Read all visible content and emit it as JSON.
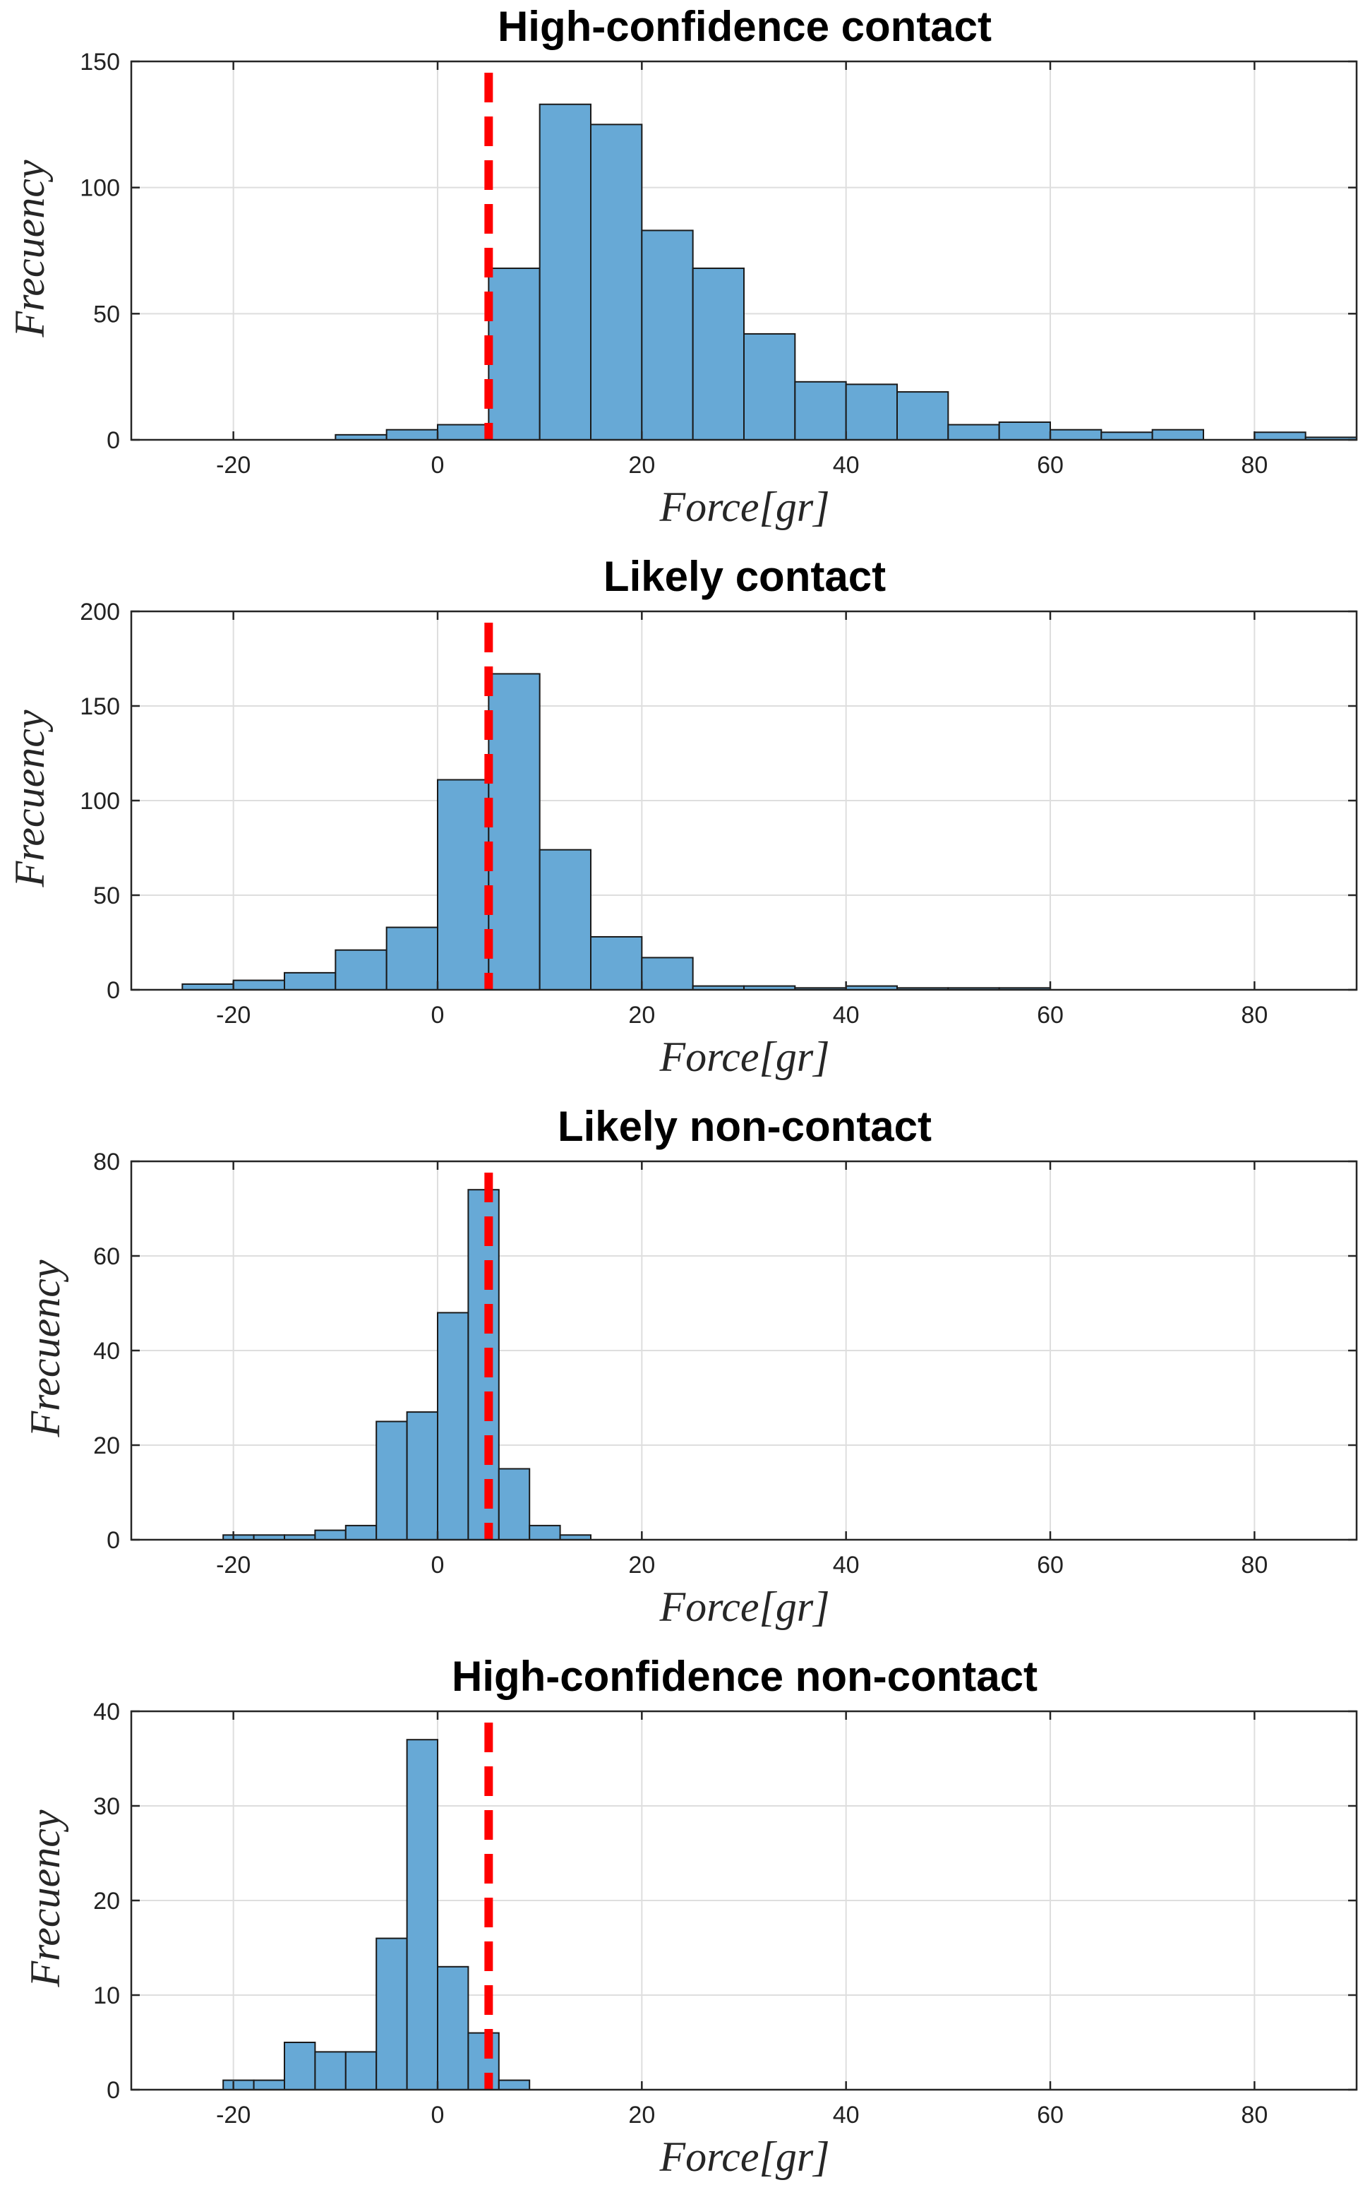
{
  "figure": {
    "bar_color": "#67a9d6",
    "bar_edge_color": "#1a1a1a",
    "threshold_color": "#ff0000"
  },
  "chart_data": [
    {
      "type": "bar",
      "title": "High-confidence contact",
      "xlabel": "Force[gr]",
      "ylabel": "Frecuency",
      "xlim": [
        -30,
        90
      ],
      "ylim": [
        0,
        150
      ],
      "xticks": [
        "-20",
        "0",
        "20",
        "40",
        "60",
        "80"
      ],
      "yticks": [
        "0",
        "50",
        "100",
        "150"
      ],
      "grid": true,
      "threshold": 5,
      "bins": [
        {
          "x0": -10,
          "x1": -5,
          "count": 2
        },
        {
          "x0": -5,
          "x1": 0,
          "count": 4
        },
        {
          "x0": 0,
          "x1": 5,
          "count": 6
        },
        {
          "x0": 5,
          "x1": 10,
          "count": 68
        },
        {
          "x0": 10,
          "x1": 15,
          "count": 133
        },
        {
          "x0": 15,
          "x1": 20,
          "count": 125
        },
        {
          "x0": 20,
          "x1": 25,
          "count": 83
        },
        {
          "x0": 25,
          "x1": 30,
          "count": 68
        },
        {
          "x0": 30,
          "x1": 35,
          "count": 42
        },
        {
          "x0": 35,
          "x1": 40,
          "count": 23
        },
        {
          "x0": 40,
          "x1": 45,
          "count": 22
        },
        {
          "x0": 45,
          "x1": 50,
          "count": 19
        },
        {
          "x0": 50,
          "x1": 55,
          "count": 6
        },
        {
          "x0": 55,
          "x1": 60,
          "count": 7
        },
        {
          "x0": 60,
          "x1": 65,
          "count": 4
        },
        {
          "x0": 65,
          "x1": 70,
          "count": 3
        },
        {
          "x0": 70,
          "x1": 75,
          "count": 4
        },
        {
          "x0": 80,
          "x1": 85,
          "count": 3
        },
        {
          "x0": 85,
          "x1": 90,
          "count": 1
        }
      ]
    },
    {
      "type": "bar",
      "title": "Likely contact",
      "xlabel": "Force[gr]",
      "ylabel": "Frecuency",
      "xlim": [
        -30,
        90
      ],
      "ylim": [
        0,
        200
      ],
      "xticks": [
        "-20",
        "0",
        "20",
        "40",
        "60",
        "80"
      ],
      "yticks": [
        "0",
        "50",
        "100",
        "150",
        "200"
      ],
      "grid": true,
      "threshold": 5,
      "bins": [
        {
          "x0": -25,
          "x1": -20,
          "count": 3
        },
        {
          "x0": -20,
          "x1": -15,
          "count": 5
        },
        {
          "x0": -15,
          "x1": -10,
          "count": 9
        },
        {
          "x0": -10,
          "x1": -5,
          "count": 21
        },
        {
          "x0": -5,
          "x1": 0,
          "count": 33
        },
        {
          "x0": 0,
          "x1": 5,
          "count": 111
        },
        {
          "x0": 5,
          "x1": 10,
          "count": 167
        },
        {
          "x0": 10,
          "x1": 15,
          "count": 74
        },
        {
          "x0": 15,
          "x1": 20,
          "count": 28
        },
        {
          "x0": 20,
          "x1": 25,
          "count": 17
        },
        {
          "x0": 25,
          "x1": 30,
          "count": 2
        },
        {
          "x0": 30,
          "x1": 35,
          "count": 2
        },
        {
          "x0": 35,
          "x1": 40,
          "count": 1
        },
        {
          "x0": 40,
          "x1": 45,
          "count": 2
        },
        {
          "x0": 45,
          "x1": 50,
          "count": 1
        },
        {
          "x0": 50,
          "x1": 55,
          "count": 1
        },
        {
          "x0": 55,
          "x1": 60,
          "count": 1
        }
      ]
    },
    {
      "type": "bar",
      "title": "Likely non-contact",
      "xlabel": "Force[gr]",
      "ylabel": "Frecuency",
      "xlim": [
        -30,
        90
      ],
      "ylim": [
        0,
        80
      ],
      "xticks": [
        "-20",
        "0",
        "20",
        "40",
        "60",
        "80"
      ],
      "yticks": [
        "0",
        "20",
        "40",
        "60",
        "80"
      ],
      "grid": true,
      "threshold": 5,
      "bins": [
        {
          "x0": -21,
          "x1": -18,
          "count": 1
        },
        {
          "x0": -18,
          "x1": -15,
          "count": 1
        },
        {
          "x0": -15,
          "x1": -12,
          "count": 1
        },
        {
          "x0": -12,
          "x1": -9,
          "count": 2
        },
        {
          "x0": -9,
          "x1": -6,
          "count": 3
        },
        {
          "x0": -6,
          "x1": -3,
          "count": 25
        },
        {
          "x0": -3,
          "x1": 0,
          "count": 27
        },
        {
          "x0": 0,
          "x1": 3,
          "count": 48
        },
        {
          "x0": 3,
          "x1": 6,
          "count": 74
        },
        {
          "x0": 6,
          "x1": 9,
          "count": 15
        },
        {
          "x0": 9,
          "x1": 12,
          "count": 3
        },
        {
          "x0": 12,
          "x1": 15,
          "count": 1
        }
      ]
    },
    {
      "type": "bar",
      "title": "High-confidence non-contact",
      "xlabel": "Force[gr]",
      "ylabel": "Frecuency",
      "xlim": [
        -30,
        90
      ],
      "ylim": [
        0,
        40
      ],
      "xticks": [
        "-20",
        "0",
        "20",
        "40",
        "60",
        "80"
      ],
      "yticks": [
        "0",
        "10",
        "20",
        "30",
        "40"
      ],
      "grid": true,
      "threshold": 5,
      "bins": [
        {
          "x0": -21,
          "x1": -18,
          "count": 1
        },
        {
          "x0": -18,
          "x1": -15,
          "count": 1
        },
        {
          "x0": -15,
          "x1": -12,
          "count": 5
        },
        {
          "x0": -12,
          "x1": -9,
          "count": 4
        },
        {
          "x0": -9,
          "x1": -6,
          "count": 4
        },
        {
          "x0": -6,
          "x1": -3,
          "count": 16
        },
        {
          "x0": -3,
          "x1": 0,
          "count": 37
        },
        {
          "x0": 0,
          "x1": 3,
          "count": 13
        },
        {
          "x0": 3,
          "x1": 6,
          "count": 6
        },
        {
          "x0": 6,
          "x1": 9,
          "count": 1
        }
      ]
    }
  ]
}
